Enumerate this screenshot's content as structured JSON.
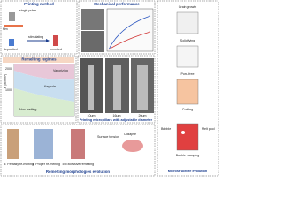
{
  "panels": {
    "printing_method": {
      "title": "Printing method",
      "labels": [
        "single pulse",
        "film",
        "deposited",
        "stimulating",
        "remelted"
      ]
    },
    "mechanical_performance": {
      "title": "Mechanical performance"
    },
    "remelting_regimes": {
      "title": "Remelting regimes",
      "y_label": "P (w/mm²)",
      "ticks": [
        "2000",
        "1000"
      ],
      "regions": [
        "Vaporizing",
        "Keyhole",
        "Non-melting"
      ]
    },
    "micropillars": {
      "title": "Printing micropillars with adjustable diameter",
      "scale_bars": [
        "10μm",
        "16μm",
        "20μm"
      ]
    },
    "morphologies": {
      "title": "Remelting morphologies evolution",
      "cases": [
        "① Partially re-melting",
        "② Proper re-melting",
        "③ Excessive remelting"
      ],
      "labels": [
        "Surface tension",
        "Collapse"
      ]
    },
    "microstructure": {
      "title": "Microstructure evolution",
      "stages": [
        "Grain growth",
        "Solidifying",
        "Pore-free",
        "Cooling",
        "Bubble escaping"
      ],
      "labels": [
        "Bubble",
        "Melt pool"
      ]
    }
  }
}
